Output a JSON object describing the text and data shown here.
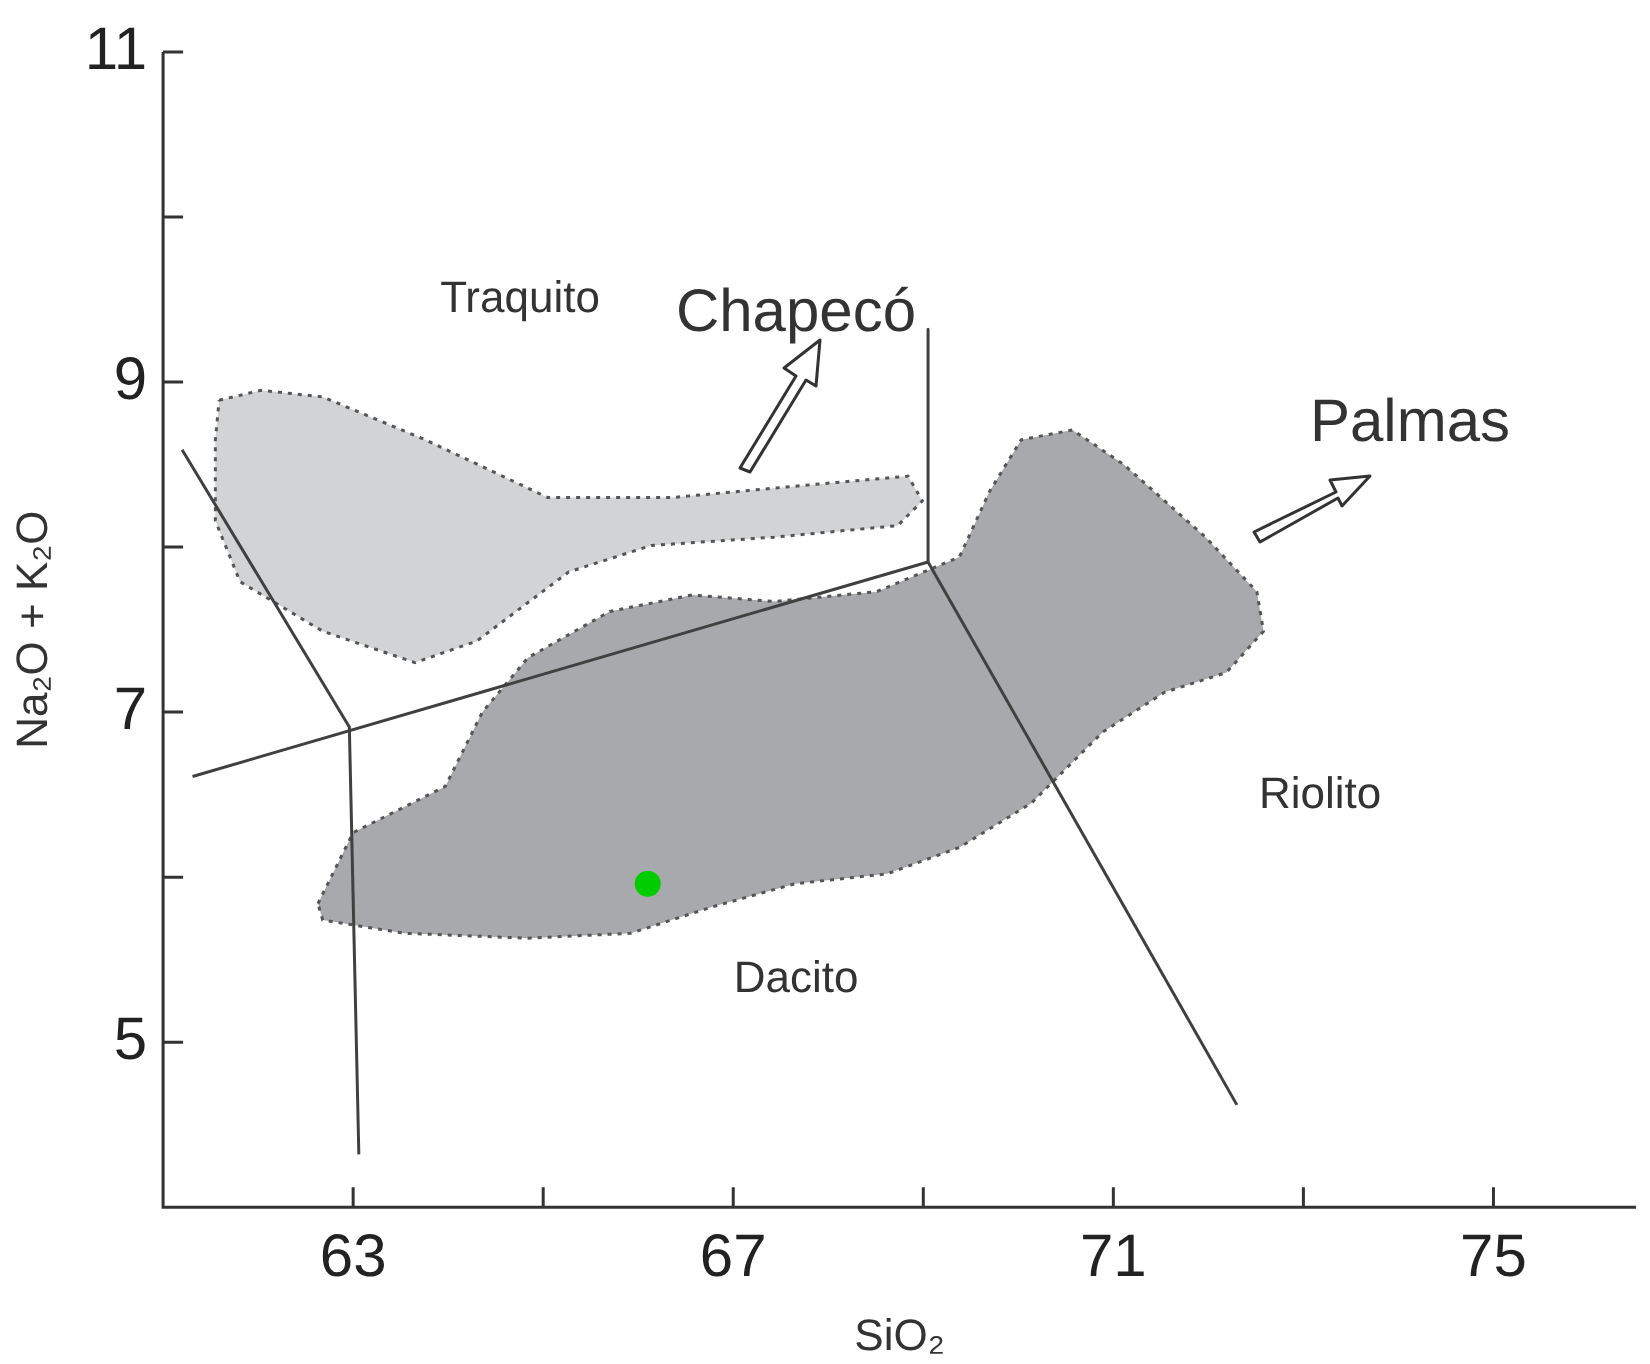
{
  "chart_data": {
    "type": "scatter",
    "xlabel": "SiO₂",
    "ylabel": "Na₂O + K₂O",
    "xlim": [
      61,
      76.5
    ],
    "ylim": [
      4,
      11
    ],
    "xticks": [
      63,
      {
        "value": 65,
        "label": null
      },
      67,
      {
        "value": 69,
        "label": null
      },
      71,
      {
        "value": 73,
        "label": null
      },
      75
    ],
    "yticks": [
      5,
      {
        "value": 6,
        "label": null
      },
      7,
      {
        "value": 8,
        "label": null
      },
      9,
      {
        "value": 10,
        "label": null
      },
      11
    ],
    "grid": false,
    "legend": false,
    "series": [
      {
        "type": "area",
        "name": "Chapecó",
        "color": "#d1d3d4",
        "line_style": "dotted",
        "x": [
          61.59,
          62.03,
          62.68,
          63.76,
          65.05,
          66.35,
          67.86,
          68.84,
          68.99,
          68.73,
          67.43,
          66.14,
          65.27,
          64.3,
          63.65,
          62.68,
          61.81,
          61.55,
          61.55,
          61.59
        ],
        "values": [
          8.89,
          8.95,
          8.91,
          8.65,
          8.3,
          8.3,
          8.38,
          8.43,
          8.28,
          8.13,
          8.06,
          8.01,
          7.85,
          7.43,
          7.3,
          7.49,
          7.79,
          8.16,
          8.65,
          8.89
        ]
      },
      {
        "type": "area",
        "name": "Palmas",
        "color": "#a7a9ac",
        "line_style": "dotted",
        "x": [
          62.63,
          63.0,
          63.97,
          64.36,
          64.84,
          65.7,
          66.57,
          67.43,
          68.51,
          69.38,
          69.7,
          70.03,
          70.57,
          71.11,
          71.97,
          72.51,
          72.58,
          72.19,
          71.54,
          70.89,
          70.14,
          69.38,
          68.62,
          67.65,
          66.78,
          65.92,
          64.84,
          63.54,
          62.68,
          62.63
        ],
        "values": [
          5.84,
          6.27,
          6.55,
          7.0,
          7.33,
          7.61,
          7.71,
          7.67,
          7.73,
          7.94,
          8.34,
          8.65,
          8.71,
          8.5,
          8.06,
          7.73,
          7.49,
          7.24,
          7.12,
          6.88,
          6.45,
          6.18,
          6.02,
          5.96,
          5.82,
          5.66,
          5.63,
          5.66,
          5.74,
          5.84
        ]
      },
      {
        "type": "line",
        "color": "#404040",
        "line_style": "solid",
        "x": [
          61.2,
          62.96,
          63.06
        ],
        "values": [
          8.59,
          6.91,
          4.32
        ]
      },
      {
        "type": "line",
        "color": "#404040",
        "line_style": "solid",
        "x": [
          61.31,
          69.05
        ],
        "values": [
          6.61,
          7.91
        ]
      },
      {
        "type": "line",
        "color": "#404040",
        "line_style": "solid",
        "x": [
          69.05,
          69.05
        ],
        "values": [
          9.32,
          7.91
        ]
      },
      {
        "type": "line",
        "color": "#404040",
        "line_style": "solid",
        "x": [
          69.05,
          72.3
        ],
        "values": [
          7.91,
          4.62
        ]
      },
      {
        "type": "scatter",
        "color": "#00cc00",
        "marker": "circle",
        "x": [
          66.1
        ],
        "values": [
          5.96
        ]
      }
    ],
    "annotations": [
      "Traquito",
      "Dacito",
      "Riolito"
    ]
  }
}
